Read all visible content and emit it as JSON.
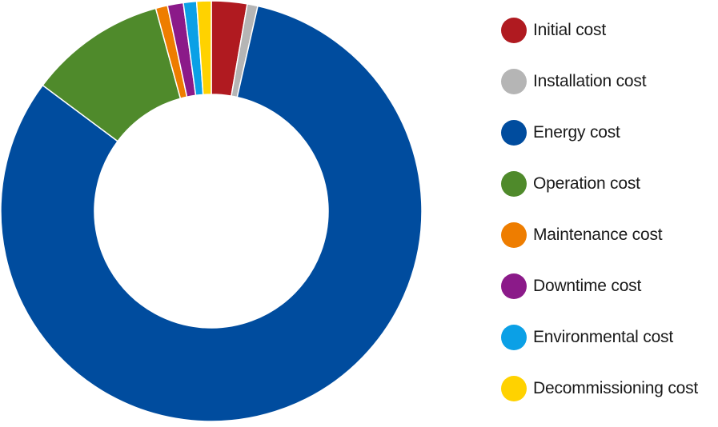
{
  "chart_data": {
    "type": "pie",
    "donut": true,
    "legend_position": "right",
    "slices": [
      {
        "label": "Initial cost",
        "value": 2.7,
        "color": "#B01A20"
      },
      {
        "label": "Installation cost",
        "value": 0.8,
        "color": "#B5B5B5"
      },
      {
        "label": "Energy cost",
        "value": 80.6,
        "color": "#004C9E"
      },
      {
        "label": "Operation cost",
        "value": 10.4,
        "color": "#4F8A2B"
      },
      {
        "label": "Maintenance cost",
        "value": 0.9,
        "color": "#EE7D00"
      },
      {
        "label": "Downtime cost",
        "value": 1.2,
        "color": "#8B1A89"
      },
      {
        "label": "Environmental cost",
        "value": 1.0,
        "color": "#0BA0E6"
      },
      {
        "label": "Decommissioning cost",
        "value": 1.1,
        "color": "#FFD200"
      }
    ]
  }
}
